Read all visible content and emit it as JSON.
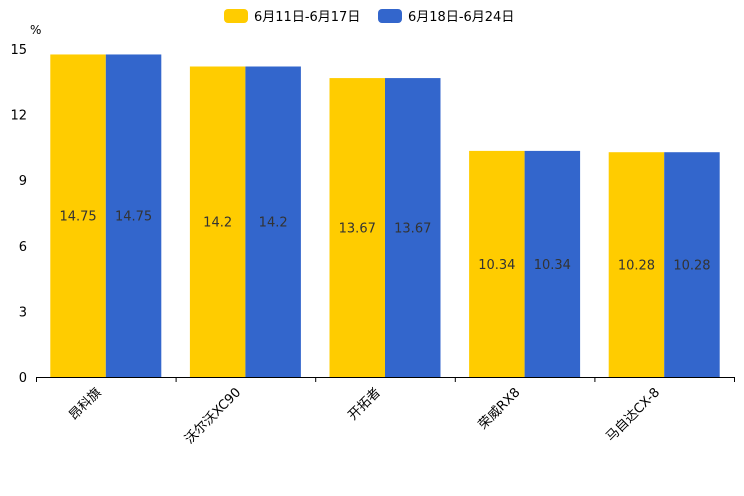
{
  "chart_data": {
    "type": "bar",
    "unit": "%",
    "categories": [
      "昂科旗",
      "沃尔沃XC90",
      "开拓者",
      "荣威RX8",
      "马自达CX-8"
    ],
    "series": [
      {
        "name": "6月11日-6月17日",
        "color": "#FFCC00",
        "values": [
          14.75,
          14.2,
          13.67,
          10.34,
          10.28
        ]
      },
      {
        "name": "6月18日-6月24日",
        "color": "#3366CC",
        "values": [
          14.75,
          14.2,
          13.67,
          10.34,
          10.28
        ]
      }
    ],
    "y_ticks": [
      0,
      3,
      6,
      9,
      12,
      15
    ],
    "ylim": [
      0,
      15
    ],
    "legend": "top-center",
    "grid": false
  }
}
